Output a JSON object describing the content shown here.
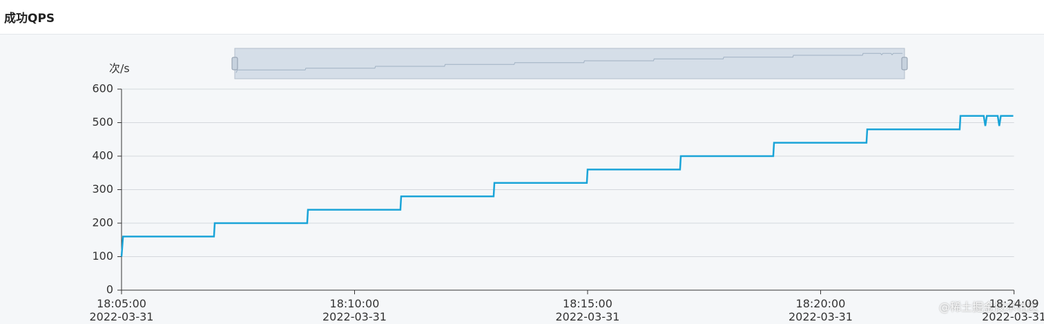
{
  "title": "成功QPS",
  "watermark": "@稀土掘金技术社区",
  "chart_data": {
    "type": "line",
    "y_label": "次/s",
    "color": "#1aa4d8",
    "grid": true,
    "x": [
      "2022-03-31 18:05:00",
      "2022-03-31 18:05:02",
      "2022-03-31 18:06:59",
      "2022-03-31 18:07:00",
      "2022-03-31 18:08:59",
      "2022-03-31 18:09:00",
      "2022-03-31 18:10:59",
      "2022-03-31 18:11:00",
      "2022-03-31 18:12:59",
      "2022-03-31 18:13:00",
      "2022-03-31 18:14:59",
      "2022-03-31 18:15:00",
      "2022-03-31 18:16:59",
      "2022-03-31 18:17:00",
      "2022-03-31 18:18:59",
      "2022-03-31 18:19:00",
      "2022-03-31 18:20:59",
      "2022-03-31 18:21:00",
      "2022-03-31 18:22:59",
      "2022-03-31 18:23:00",
      "2022-03-31 18:23:30",
      "2022-03-31 18:23:32",
      "2022-03-31 18:23:34",
      "2022-03-31 18:23:48",
      "2022-03-31 18:23:50",
      "2022-03-31 18:23:52",
      "2022-03-31 18:24:08"
    ],
    "values": [
      100,
      160,
      160,
      200,
      200,
      240,
      240,
      280,
      280,
      320,
      320,
      360,
      360,
      400,
      400,
      440,
      440,
      480,
      480,
      520,
      520,
      490,
      520,
      520,
      490,
      520,
      520
    ],
    "xlim": [
      "2022-03-31 18:05:00",
      "2022-03-31 18:24:09"
    ],
    "xticks": [
      {
        "value": "2022-03-31 18:05:00",
        "label": "18:05:00\n2022-03-31"
      },
      {
        "value": "2022-03-31 18:10:00",
        "label": "18:10:00\n2022-03-31"
      },
      {
        "value": "2022-03-31 18:15:00",
        "label": "18:15:00\n2022-03-31"
      },
      {
        "value": "2022-03-31 18:20:00",
        "label": "18:20:00\n2022-03-31"
      },
      {
        "value": "2022-03-31 18:24:09",
        "label": "18:24:09\n2022-03-31"
      }
    ],
    "ylim": [
      0,
      600
    ],
    "yticks": [
      0,
      100,
      200,
      300,
      400,
      500,
      600
    ]
  }
}
